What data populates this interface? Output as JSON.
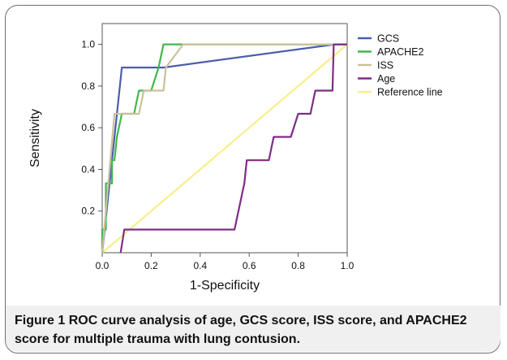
{
  "figure": {
    "label": "Figure 1",
    "caption": "ROC curve analysis of age, GCS score, ISS score, and APACHE2 score for multiple trauma with lung contusion."
  },
  "chart_data": {
    "type": "line",
    "title": "",
    "xlabel": "1-Specificity",
    "ylabel": "Sensitivity",
    "xlim": [
      0,
      1
    ],
    "ylim": [
      0,
      1.1
    ],
    "xticks": [
      "0.0",
      "0.2",
      "0.4",
      "0.6",
      "0.8",
      "1.0"
    ],
    "yticks": [
      "0.2",
      "0.4",
      "0.6",
      "0.8",
      "1.0"
    ],
    "grid": false,
    "legend_position": "right",
    "series": [
      {
        "name": "GCS",
        "color": "#4a5fa8",
        "points": [
          [
            0,
            0
          ],
          [
            0.08,
            0.889
          ],
          [
            0.25,
            0.889
          ],
          [
            0.95,
            1.0
          ],
          [
            1.0,
            1.0
          ]
        ]
      },
      {
        "name": "APACHE2",
        "color": "#3fb84a",
        "points": [
          [
            0,
            0
          ],
          [
            0,
            0.111
          ],
          [
            0.015,
            0.111
          ],
          [
            0.015,
            0.333
          ],
          [
            0.04,
            0.333
          ],
          [
            0.04,
            0.444
          ],
          [
            0.05,
            0.444
          ],
          [
            0.06,
            0.556
          ],
          [
            0.08,
            0.667
          ],
          [
            0.13,
            0.667
          ],
          [
            0.15,
            0.778
          ],
          [
            0.2,
            0.778
          ],
          [
            0.23,
            0.889
          ],
          [
            0.25,
            1.0
          ],
          [
            0.93,
            1.0
          ],
          [
            1.0,
            1.0
          ]
        ]
      },
      {
        "name": "ISS",
        "color": "#c9c19a",
        "points": [
          [
            0,
            0
          ],
          [
            0.05,
            0.667
          ],
          [
            0.15,
            0.667
          ],
          [
            0.17,
            0.778
          ],
          [
            0.25,
            0.778
          ],
          [
            0.26,
            0.889
          ],
          [
            0.33,
            1.0
          ],
          [
            1.0,
            1.0
          ]
        ]
      },
      {
        "name": "Age",
        "color": "#7d2d84",
        "points": [
          [
            0.075,
            0
          ],
          [
            0.09,
            0.111
          ],
          [
            0.54,
            0.111
          ],
          [
            0.58,
            0.333
          ],
          [
            0.59,
            0.444
          ],
          [
            0.68,
            0.444
          ],
          [
            0.7,
            0.556
          ],
          [
            0.77,
            0.556
          ],
          [
            0.8,
            0.667
          ],
          [
            0.85,
            0.667
          ],
          [
            0.87,
            0.778
          ],
          [
            0.94,
            0.778
          ],
          [
            0.945,
            1.0
          ],
          [
            1.0,
            1.0
          ]
        ]
      },
      {
        "name": "Reference line",
        "color": "#f7ef8a",
        "points": [
          [
            0,
            0
          ],
          [
            1,
            1
          ]
        ]
      }
    ]
  }
}
